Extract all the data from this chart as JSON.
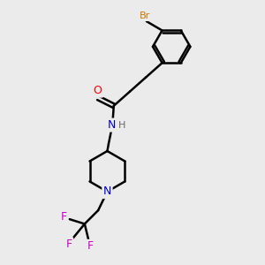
{
  "background_color": "#ebebeb",
  "bond_color": "#000000",
  "atom_colors": {
    "Br": "#cc7700",
    "O": "#ff0000",
    "N": "#0000cc",
    "H_color": "#555555",
    "F": "#cc00cc"
  },
  "figsize": [
    3.0,
    3.0
  ],
  "dpi": 100
}
